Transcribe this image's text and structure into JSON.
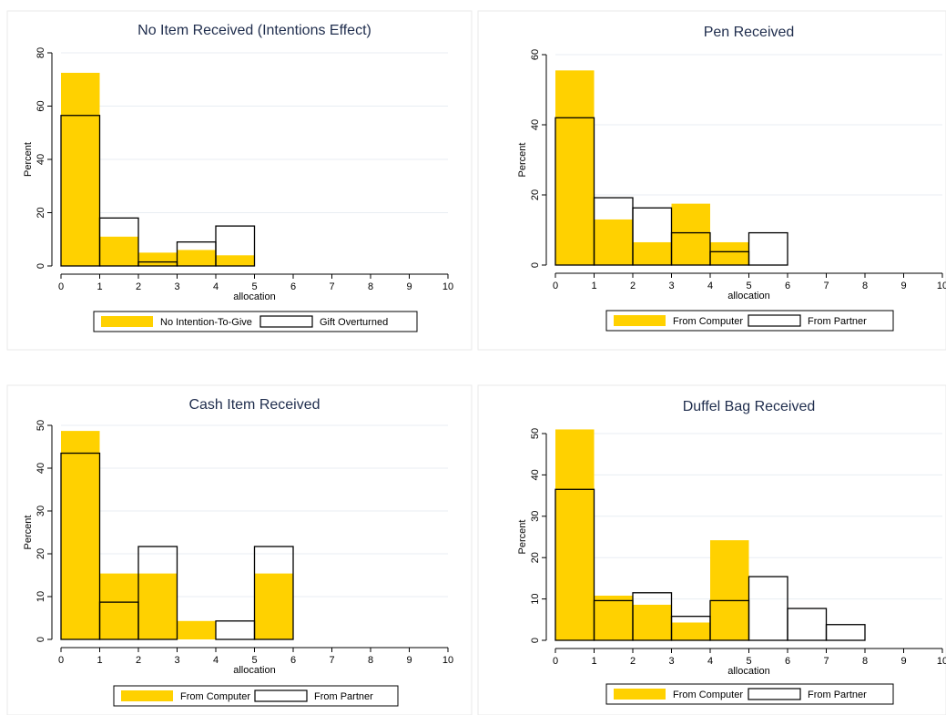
{
  "colors": {
    "filled": "#ffd100",
    "outline": "#000000",
    "title": "#1f2d4d",
    "grid": "#e8eef3"
  },
  "chart_data": [
    {
      "type": "bar",
      "title": "No Item Received (Intentions Effect)",
      "xlabel": "allocation",
      "ylabel": "Percent",
      "xlim": [
        0,
        10
      ],
      "ylim": [
        0,
        80
      ],
      "yticks": [
        0,
        20,
        40,
        60,
        80
      ],
      "xticks": [
        0,
        1,
        2,
        3,
        4,
        5,
        6,
        7,
        8,
        9,
        10
      ],
      "bin_edges": [
        0,
        1,
        2,
        3,
        4,
        5
      ],
      "grid": true,
      "legend_position": "bottom",
      "series": [
        {
          "name": "No Intention-To-Give",
          "style": "filled",
          "values": [
            72.5,
            11,
            5,
            6,
            4
          ]
        },
        {
          "name": "Gift Overturned",
          "style": "outline",
          "values": [
            56.5,
            18,
            1.5,
            9,
            15
          ]
        }
      ]
    },
    {
      "type": "bar",
      "title": "Pen Received",
      "xlabel": "allocation",
      "ylabel": "Percent",
      "xlim": [
        0,
        10
      ],
      "ylim": [
        0,
        60
      ],
      "yticks": [
        0,
        20,
        40,
        60
      ],
      "xticks": [
        0,
        1,
        2,
        3,
        4,
        5,
        6,
        7,
        8,
        9,
        10
      ],
      "bin_edges": [
        0,
        1,
        2,
        3,
        4,
        5,
        6
      ],
      "grid": true,
      "legend_position": "bottom",
      "series": [
        {
          "name": "From Computer",
          "style": "filled",
          "values": [
            55.5,
            13,
            6.5,
            17.5,
            6.5,
            0
          ]
        },
        {
          "name": "From Partner",
          "style": "outline",
          "values": [
            42,
            19.2,
            16.3,
            9.2,
            3.8,
            9.2
          ]
        }
      ]
    },
    {
      "type": "bar",
      "title": "Cash Item Received",
      "xlabel": "allocation",
      "ylabel": "Percent",
      "xlim": [
        0,
        10
      ],
      "ylim": [
        0,
        50
      ],
      "yticks": [
        0,
        10,
        20,
        30,
        40,
        50
      ],
      "xticks": [
        0,
        1,
        2,
        3,
        4,
        5,
        6,
        7,
        8,
        9,
        10
      ],
      "bin_edges": [
        0,
        1,
        2,
        3,
        4,
        5,
        6
      ],
      "grid": true,
      "legend_position": "bottom",
      "series": [
        {
          "name": "From Computer",
          "style": "filled",
          "values": [
            48.7,
            15.4,
            15.4,
            4.3,
            0,
            15.4
          ]
        },
        {
          "name": "From Partner",
          "style": "outline",
          "values": [
            43.5,
            8.7,
            21.7,
            0,
            4.3,
            21.7
          ]
        }
      ]
    },
    {
      "type": "bar",
      "title": "Duffel Bag Received",
      "xlabel": "allocation",
      "ylabel": "Percent",
      "xlim": [
        0,
        10
      ],
      "ylim": [
        0,
        50
      ],
      "yticks": [
        0,
        10,
        20,
        30,
        40,
        50
      ],
      "xticks": [
        0,
        1,
        2,
        3,
        4,
        5,
        6,
        7,
        8,
        9,
        10
      ],
      "bin_edges": [
        0,
        1,
        2,
        3,
        4,
        5,
        6,
        7,
        8
      ],
      "grid": true,
      "legend_position": "bottom",
      "series": [
        {
          "name": "From Computer",
          "style": "filled",
          "values": [
            51,
            10.8,
            8.6,
            4.3,
            24.2,
            0,
            0,
            0
          ]
        },
        {
          "name": "From Partner",
          "style": "outline",
          "values": [
            36.5,
            9.6,
            11.5,
            5.8,
            9.6,
            15.4,
            7.7,
            3.8
          ]
        }
      ]
    }
  ]
}
